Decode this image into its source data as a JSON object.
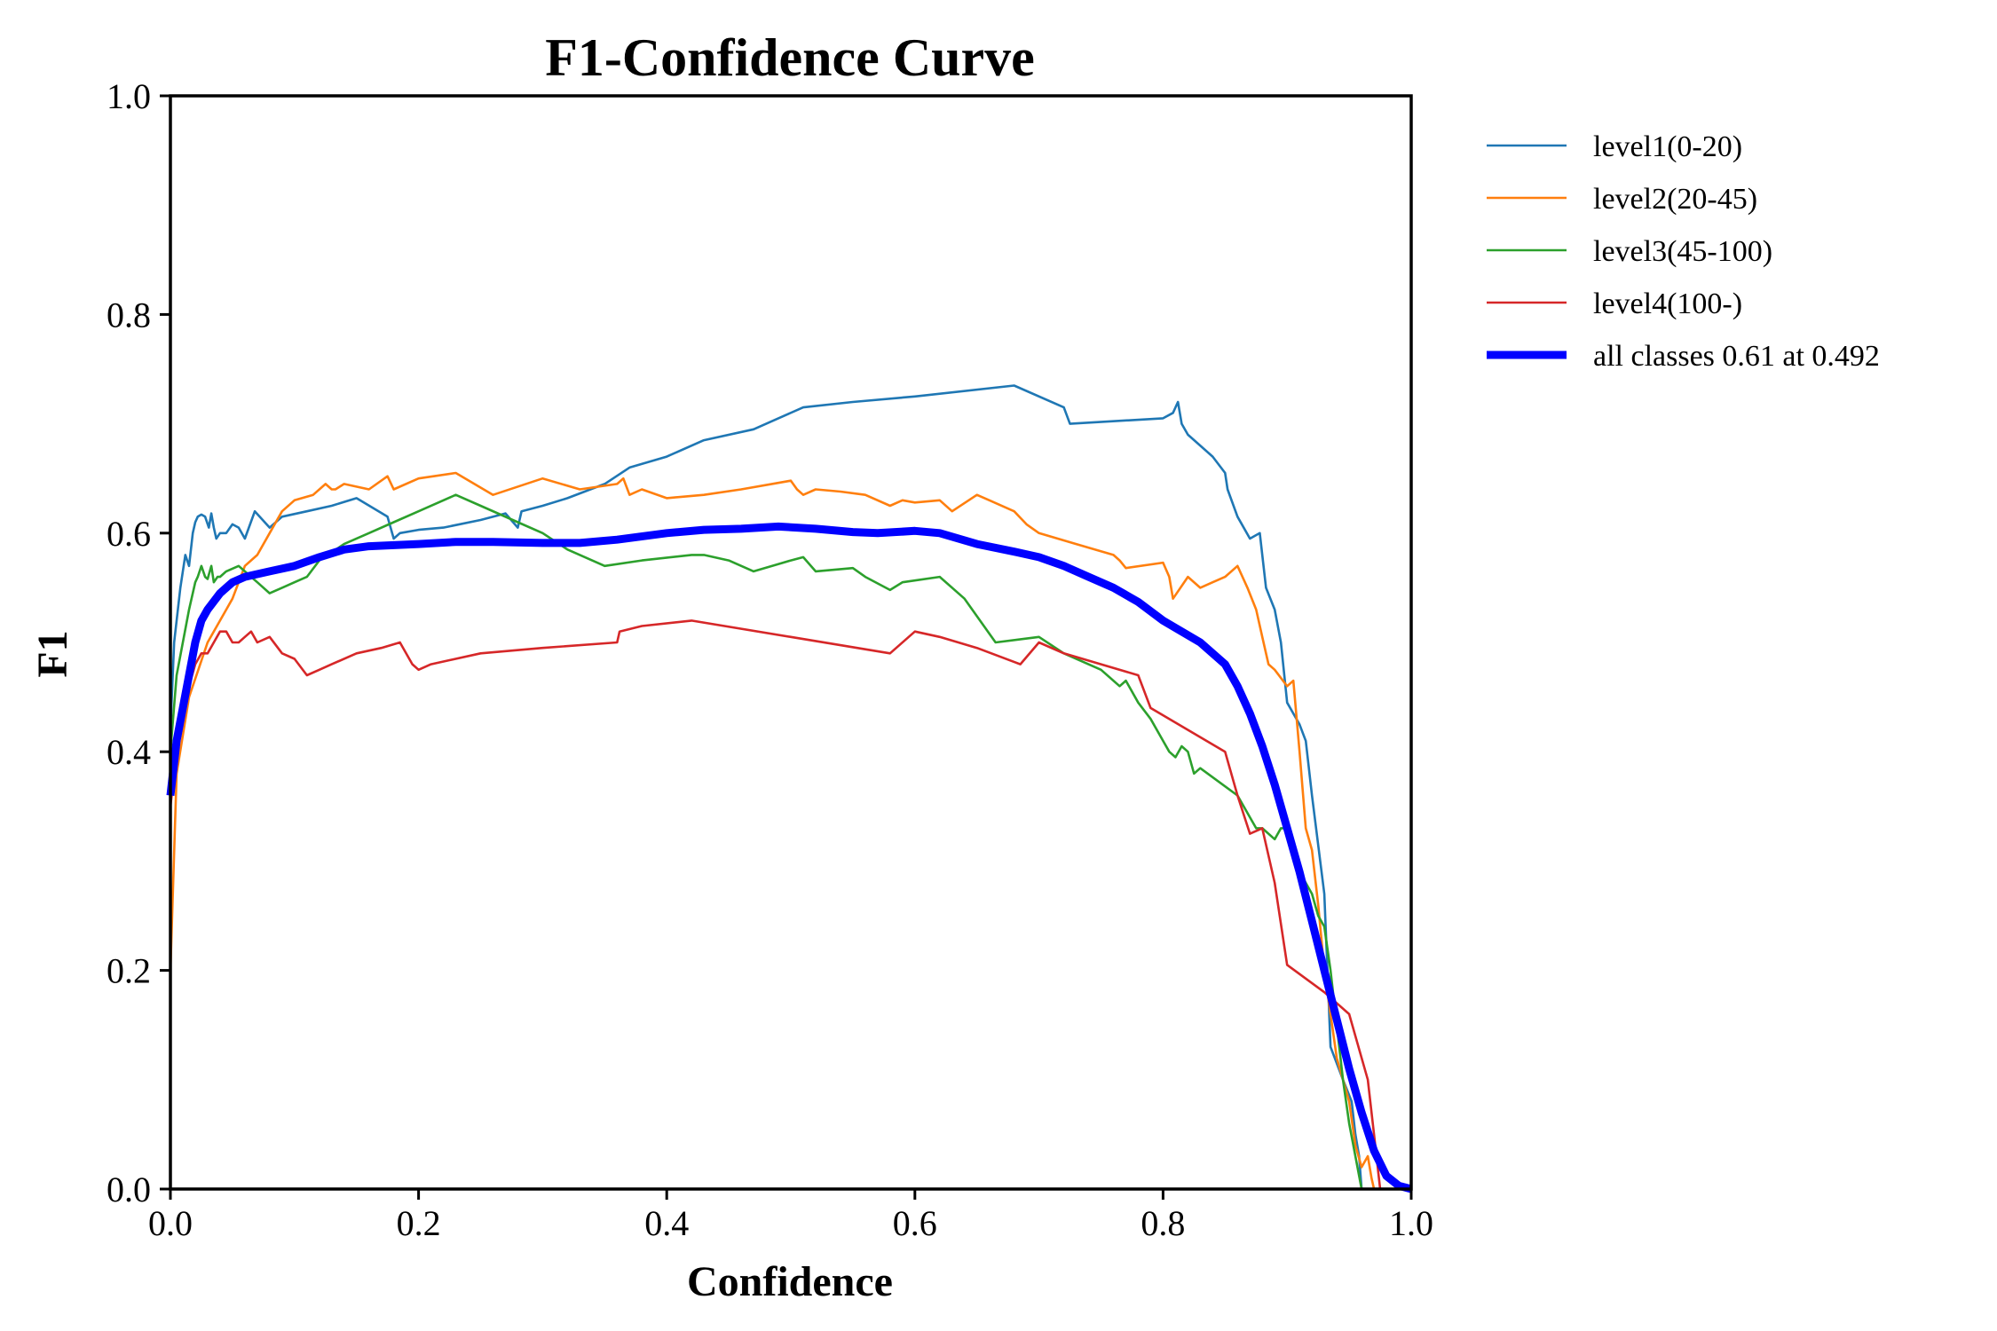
{
  "chart_data": {
    "type": "line",
    "title": "F1-Confidence Curve",
    "xlabel": "Confidence",
    "ylabel": "F1",
    "xlim": [
      0,
      1
    ],
    "ylim": [
      0,
      1
    ],
    "xticks": [
      "0.0",
      "0.2",
      "0.4",
      "0.6",
      "0.8",
      "1.0"
    ],
    "yticks": [
      "0.0",
      "0.2",
      "0.4",
      "0.6",
      "0.8",
      "1.0"
    ],
    "grid": false,
    "legend_position": "outside-right",
    "series": [
      {
        "name": "level1(0-20)",
        "color": "#1f77b4",
        "emphasis": false,
        "x": [
          0.0,
          0.003,
          0.008,
          0.012,
          0.015,
          0.018,
          0.02,
          0.022,
          0.025,
          0.028,
          0.031,
          0.033,
          0.035,
          0.037,
          0.04,
          0.045,
          0.05,
          0.055,
          0.06,
          0.068,
          0.08,
          0.09,
          0.11,
          0.13,
          0.15,
          0.175,
          0.18,
          0.185,
          0.2,
          0.22,
          0.25,
          0.27,
          0.28,
          0.283,
          0.3,
          0.32,
          0.35,
          0.37,
          0.4,
          0.43,
          0.47,
          0.49,
          0.51,
          0.55,
          0.6,
          0.68,
          0.72,
          0.725,
          0.8,
          0.808,
          0.812,
          0.815,
          0.82,
          0.84,
          0.85,
          0.852,
          0.86,
          0.87,
          0.878,
          0.883,
          0.89,
          0.895,
          0.9,
          0.91,
          0.915,
          0.92,
          0.93,
          0.935,
          0.945,
          0.952,
          0.955,
          0.958,
          0.96,
          0.98
        ],
        "y": [
          0.42,
          0.5,
          0.55,
          0.58,
          0.57,
          0.6,
          0.61,
          0.615,
          0.617,
          0.615,
          0.605,
          0.618,
          0.605,
          0.595,
          0.6,
          0.6,
          0.608,
          0.605,
          0.595,
          0.62,
          0.605,
          0.615,
          0.62,
          0.625,
          0.632,
          0.615,
          0.595,
          0.6,
          0.603,
          0.605,
          0.612,
          0.618,
          0.605,
          0.62,
          0.625,
          0.632,
          0.645,
          0.66,
          0.67,
          0.685,
          0.695,
          0.705,
          0.715,
          0.72,
          0.725,
          0.735,
          0.715,
          0.7,
          0.705,
          0.71,
          0.72,
          0.7,
          0.69,
          0.67,
          0.655,
          0.64,
          0.615,
          0.595,
          0.6,
          0.55,
          0.53,
          0.5,
          0.445,
          0.425,
          0.41,
          0.36,
          0.27,
          0.13,
          0.1,
          0.08,
          0.05,
          0.03,
          0.0,
          0.0
        ]
      },
      {
        "name": "level2(20-45)",
        "color": "#ff7f0e",
        "emphasis": false,
        "x": [
          0.0,
          0.005,
          0.015,
          0.03,
          0.04,
          0.05,
          0.06,
          0.07,
          0.08,
          0.09,
          0.1,
          0.115,
          0.125,
          0.13,
          0.133,
          0.14,
          0.16,
          0.175,
          0.18,
          0.2,
          0.23,
          0.26,
          0.3,
          0.33,
          0.36,
          0.365,
          0.37,
          0.38,
          0.4,
          0.43,
          0.46,
          0.5,
          0.505,
          0.51,
          0.52,
          0.54,
          0.56,
          0.58,
          0.59,
          0.6,
          0.62,
          0.63,
          0.65,
          0.66,
          0.68,
          0.69,
          0.7,
          0.73,
          0.76,
          0.765,
          0.77,
          0.8,
          0.805,
          0.808,
          0.82,
          0.83,
          0.84,
          0.85,
          0.86,
          0.868,
          0.875,
          0.88,
          0.885,
          0.89,
          0.9,
          0.905,
          0.91,
          0.915,
          0.92,
          0.925,
          0.93,
          0.94,
          0.95,
          0.955,
          0.96,
          0.965,
          0.968,
          0.97
        ],
        "y": [
          0.2,
          0.38,
          0.45,
          0.5,
          0.52,
          0.54,
          0.57,
          0.58,
          0.6,
          0.62,
          0.63,
          0.635,
          0.645,
          0.64,
          0.64,
          0.645,
          0.64,
          0.652,
          0.64,
          0.65,
          0.655,
          0.635,
          0.65,
          0.64,
          0.645,
          0.65,
          0.635,
          0.64,
          0.632,
          0.635,
          0.64,
          0.648,
          0.64,
          0.635,
          0.64,
          0.638,
          0.635,
          0.625,
          0.63,
          0.628,
          0.63,
          0.62,
          0.635,
          0.63,
          0.62,
          0.608,
          0.6,
          0.59,
          0.58,
          0.575,
          0.568,
          0.573,
          0.56,
          0.54,
          0.56,
          0.55,
          0.555,
          0.56,
          0.57,
          0.55,
          0.53,
          0.505,
          0.48,
          0.475,
          0.46,
          0.465,
          0.4,
          0.33,
          0.31,
          0.26,
          0.2,
          0.12,
          0.08,
          0.04,
          0.02,
          0.03,
          0.01,
          0.0
        ]
      },
      {
        "name": "level3(45-100)",
        "color": "#2ca02c",
        "emphasis": false,
        "x": [
          0.0,
          0.005,
          0.01,
          0.015,
          0.02,
          0.022,
          0.025,
          0.028,
          0.03,
          0.033,
          0.035,
          0.038,
          0.04,
          0.045,
          0.055,
          0.06,
          0.065,
          0.07,
          0.08,
          0.09,
          0.1,
          0.11,
          0.12,
          0.14,
          0.16,
          0.18,
          0.2,
          0.23,
          0.25,
          0.28,
          0.3,
          0.32,
          0.35,
          0.38,
          0.42,
          0.43,
          0.45,
          0.47,
          0.5,
          0.51,
          0.52,
          0.55,
          0.56,
          0.58,
          0.59,
          0.62,
          0.64,
          0.665,
          0.7,
          0.72,
          0.75,
          0.765,
          0.77,
          0.78,
          0.79,
          0.8,
          0.805,
          0.81,
          0.815,
          0.82,
          0.825,
          0.83,
          0.86,
          0.87,
          0.875,
          0.88,
          0.89,
          0.895,
          0.9,
          0.905,
          0.91,
          0.915,
          0.92,
          0.925,
          0.93,
          0.935,
          0.94,
          0.945,
          0.95,
          0.955,
          0.96
        ],
        "y": [
          0.4,
          0.47,
          0.5,
          0.53,
          0.555,
          0.56,
          0.57,
          0.56,
          0.558,
          0.57,
          0.555,
          0.56,
          0.56,
          0.565,
          0.57,
          0.565,
          0.56,
          0.555,
          0.545,
          0.55,
          0.555,
          0.56,
          0.575,
          0.59,
          0.6,
          0.61,
          0.62,
          0.635,
          0.625,
          0.61,
          0.6,
          0.585,
          0.57,
          0.575,
          0.58,
          0.58,
          0.575,
          0.565,
          0.575,
          0.578,
          0.565,
          0.568,
          0.56,
          0.548,
          0.555,
          0.56,
          0.54,
          0.5,
          0.505,
          0.49,
          0.475,
          0.46,
          0.465,
          0.445,
          0.43,
          0.41,
          0.4,
          0.395,
          0.405,
          0.4,
          0.38,
          0.385,
          0.36,
          0.34,
          0.33,
          0.33,
          0.32,
          0.33,
          0.33,
          0.31,
          0.29,
          0.28,
          0.27,
          0.25,
          0.24,
          0.2,
          0.15,
          0.1,
          0.06,
          0.03,
          0.0
        ]
      },
      {
        "name": "level4(100-)",
        "color": "#d62728",
        "emphasis": false,
        "x": [
          0.0,
          0.005,
          0.01,
          0.015,
          0.02,
          0.025,
          0.03,
          0.035,
          0.04,
          0.045,
          0.05,
          0.055,
          0.06,
          0.065,
          0.07,
          0.08,
          0.09,
          0.1,
          0.11,
          0.12,
          0.13,
          0.15,
          0.17,
          0.185,
          0.195,
          0.2,
          0.21,
          0.25,
          0.3,
          0.36,
          0.362,
          0.38,
          0.42,
          0.5,
          0.58,
          0.6,
          0.62,
          0.65,
          0.685,
          0.7,
          0.72,
          0.75,
          0.78,
          0.79,
          0.85,
          0.86,
          0.87,
          0.88,
          0.89,
          0.9,
          0.93,
          0.95,
          0.96,
          0.965,
          0.97,
          0.975
        ],
        "y": [
          0.35,
          0.4,
          0.44,
          0.46,
          0.48,
          0.49,
          0.49,
          0.5,
          0.51,
          0.51,
          0.5,
          0.5,
          0.505,
          0.51,
          0.5,
          0.505,
          0.49,
          0.485,
          0.47,
          0.475,
          0.48,
          0.49,
          0.495,
          0.5,
          0.48,
          0.475,
          0.48,
          0.49,
          0.495,
          0.5,
          0.51,
          0.515,
          0.52,
          0.505,
          0.49,
          0.51,
          0.505,
          0.495,
          0.48,
          0.5,
          0.49,
          0.48,
          0.47,
          0.44,
          0.4,
          0.36,
          0.325,
          0.33,
          0.28,
          0.205,
          0.18,
          0.16,
          0.12,
          0.1,
          0.05,
          0.0
        ]
      },
      {
        "name": "all classes 0.61 at 0.492",
        "color": "#0000ff",
        "emphasis": true,
        "x": [
          0.0,
          0.005,
          0.01,
          0.015,
          0.02,
          0.025,
          0.03,
          0.04,
          0.05,
          0.06,
          0.08,
          0.1,
          0.12,
          0.14,
          0.16,
          0.18,
          0.2,
          0.23,
          0.26,
          0.3,
          0.33,
          0.36,
          0.4,
          0.43,
          0.46,
          0.49,
          0.52,
          0.55,
          0.57,
          0.6,
          0.62,
          0.65,
          0.68,
          0.7,
          0.72,
          0.74,
          0.76,
          0.78,
          0.8,
          0.83,
          0.85,
          0.86,
          0.87,
          0.88,
          0.89,
          0.9,
          0.91,
          0.92,
          0.93,
          0.94,
          0.95,
          0.96,
          0.97,
          0.98,
          0.99,
          1.0
        ],
        "y": [
          0.36,
          0.41,
          0.44,
          0.47,
          0.5,
          0.52,
          0.53,
          0.545,
          0.555,
          0.56,
          0.565,
          0.57,
          0.578,
          0.585,
          0.588,
          0.589,
          0.59,
          0.592,
          0.592,
          0.591,
          0.591,
          0.594,
          0.6,
          0.603,
          0.604,
          0.606,
          0.604,
          0.601,
          0.6,
          0.602,
          0.6,
          0.59,
          0.583,
          0.578,
          0.57,
          0.56,
          0.55,
          0.537,
          0.52,
          0.5,
          0.48,
          0.46,
          0.435,
          0.405,
          0.37,
          0.33,
          0.29,
          0.245,
          0.2,
          0.155,
          0.11,
          0.07,
          0.035,
          0.012,
          0.003,
          0.0
        ]
      }
    ]
  }
}
